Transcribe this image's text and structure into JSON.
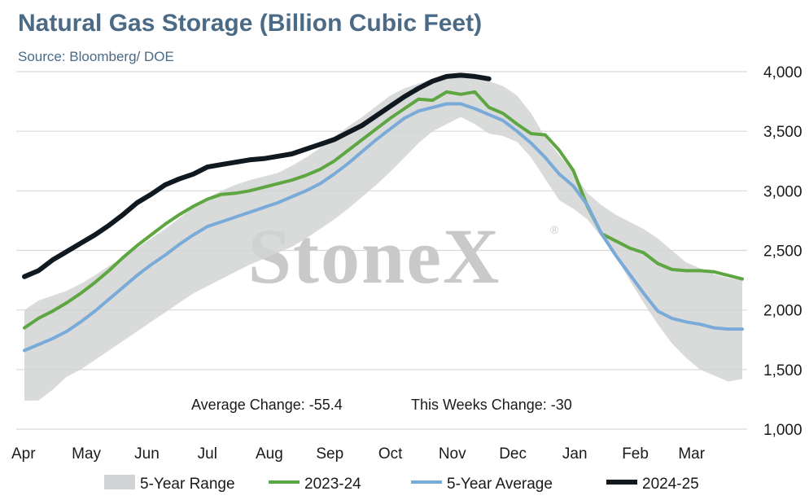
{
  "title": "Natural Gas Storage (Billion Cubic Feet)",
  "subtitle": "Source: Bloomberg/ DOE",
  "watermark": "StoneX",
  "watermark_mark": "®",
  "annotations": {
    "average_change": "Average Change: -55.4",
    "this_weeks_change": "This Weeks Change: -30"
  },
  "colors": {
    "range": "#d2d3d4",
    "y2023": "#5ea641",
    "avg": "#7aabd8",
    "y2024": "#101820",
    "text": "#1a1a1a",
    "title": "#4a6a86"
  },
  "chart_data": {
    "type": "line",
    "title": "Natural Gas Storage (Billion Cubic Feet)",
    "ylim": [
      1000,
      4000
    ],
    "y_ticks": [
      1000,
      1500,
      2000,
      2500,
      3000,
      3500,
      4000
    ],
    "y_tick_labels": [
      "1,000",
      "1,500",
      "2,000",
      "2,500",
      "3,000",
      "3,500",
      "4,000"
    ],
    "x_unit": "week (0 = first week of April)",
    "xlim": [
      0,
      51
    ],
    "x_ticks": [
      0,
      4.4,
      8.7,
      13,
      17.4,
      21.7,
      26,
      30.4,
      34.7,
      39.1,
      43.4,
      47.4
    ],
    "x_tick_labels": [
      "Apr",
      "May",
      "Jun",
      "Jul",
      "Aug",
      "Sep",
      "Oct",
      "Nov",
      "Dec",
      "Jan",
      "Feb",
      "Mar"
    ],
    "y_axis_position": "right",
    "grid": "horizontal",
    "legend_position": "bottom",
    "range_band": {
      "name": "5-Year Range",
      "x": [
        0,
        1,
        2,
        3,
        4,
        5,
        6,
        7,
        8,
        9,
        10,
        11,
        12,
        13,
        14,
        15,
        16,
        17,
        18,
        19,
        20,
        21,
        22,
        23,
        24,
        25,
        26,
        27,
        28,
        29,
        30,
        31,
        32,
        33,
        34,
        35,
        36,
        37,
        38,
        39,
        40,
        41,
        42,
        43,
        44,
        45,
        46,
        47,
        48,
        49,
        50,
        51
      ],
      "low": [
        1240,
        1240,
        1330,
        1440,
        1500,
        1580,
        1660,
        1740,
        1820,
        1900,
        1980,
        2060,
        2140,
        2200,
        2260,
        2320,
        2380,
        2430,
        2480,
        2530,
        2600,
        2680,
        2760,
        2850,
        2950,
        3050,
        3160,
        3280,
        3400,
        3500,
        3560,
        3620,
        3560,
        3480,
        3460,
        3410,
        3280,
        3100,
        2920,
        2850,
        2760,
        2610,
        2450,
        2250,
        2060,
        1880,
        1720,
        1600,
        1500,
        1450,
        1400,
        1420
      ],
      "high": [
        2000,
        2080,
        2120,
        2160,
        2220,
        2290,
        2370,
        2440,
        2520,
        2600,
        2680,
        2770,
        2860,
        2940,
        3000,
        3050,
        3090,
        3120,
        3150,
        3210,
        3280,
        3360,
        3450,
        3540,
        3620,
        3710,
        3800,
        3860,
        3900,
        3940,
        3960,
        3980,
        3960,
        3920,
        3880,
        3800,
        3650,
        3450,
        3300,
        3150,
        2980,
        2880,
        2800,
        2740,
        2680,
        2600,
        2500,
        2400,
        2350,
        2300,
        2270,
        2250
      ]
    },
    "series": [
      {
        "name": "2023-24",
        "x": [
          0,
          1,
          2,
          3,
          4,
          5,
          6,
          7,
          8,
          9,
          10,
          11,
          12,
          13,
          14,
          15,
          16,
          17,
          18,
          19,
          20,
          21,
          22,
          23,
          24,
          25,
          26,
          27,
          28,
          29,
          30,
          31,
          32,
          33,
          34,
          35,
          36,
          37,
          38,
          39,
          40,
          41,
          42,
          43,
          44,
          45,
          46,
          47,
          48,
          49,
          50,
          51
        ],
        "values": [
          1850,
          1930,
          1990,
          2060,
          2140,
          2230,
          2330,
          2440,
          2540,
          2630,
          2720,
          2800,
          2870,
          2930,
          2970,
          2980,
          3000,
          3030,
          3060,
          3090,
          3130,
          3180,
          3250,
          3340,
          3430,
          3520,
          3610,
          3690,
          3770,
          3760,
          3830,
          3810,
          3830,
          3700,
          3650,
          3560,
          3480,
          3470,
          3340,
          3170,
          2870,
          2640,
          2580,
          2520,
          2480,
          2390,
          2340,
          2330,
          2330,
          2320,
          2290,
          2260
        ]
      },
      {
        "name": "5-Year Average",
        "x": [
          0,
          1,
          2,
          3,
          4,
          5,
          6,
          7,
          8,
          9,
          10,
          11,
          12,
          13,
          14,
          15,
          16,
          17,
          18,
          19,
          20,
          21,
          22,
          23,
          24,
          25,
          26,
          27,
          28,
          29,
          30,
          31,
          32,
          33,
          34,
          35,
          36,
          37,
          38,
          39,
          40,
          41,
          42,
          43,
          44,
          45,
          46,
          47,
          48,
          49,
          50,
          51
        ],
        "values": [
          1660,
          1710,
          1760,
          1820,
          1900,
          1990,
          2090,
          2190,
          2290,
          2380,
          2460,
          2550,
          2630,
          2700,
          2740,
          2780,
          2820,
          2860,
          2900,
          2950,
          3000,
          3060,
          3140,
          3230,
          3330,
          3430,
          3520,
          3610,
          3670,
          3700,
          3730,
          3730,
          3690,
          3640,
          3590,
          3500,
          3400,
          3280,
          3140,
          3040,
          2880,
          2640,
          2460,
          2300,
          2140,
          1990,
          1930,
          1900,
          1880,
          1850,
          1840,
          1840
        ]
      },
      {
        "name": "2024-25",
        "x": [
          0,
          1,
          2,
          3,
          4,
          5,
          6,
          7,
          8,
          9,
          10,
          11,
          12,
          13,
          14,
          15,
          16,
          17,
          18,
          19,
          20,
          21,
          22,
          23,
          24,
          25,
          26,
          27,
          28,
          29,
          30,
          31,
          32,
          33
        ],
        "values": [
          2280,
          2330,
          2420,
          2490,
          2560,
          2630,
          2710,
          2800,
          2900,
          2970,
          3050,
          3100,
          3140,
          3200,
          3220,
          3240,
          3260,
          3270,
          3290,
          3310,
          3350,
          3390,
          3430,
          3490,
          3550,
          3630,
          3710,
          3790,
          3860,
          3920,
          3960,
          3970,
          3960,
          3940
        ]
      }
    ]
  },
  "legend": [
    {
      "label": "5-Year Range",
      "kind": "range"
    },
    {
      "label": "2023-24",
      "kind": "y2023"
    },
    {
      "label": "5-Year Average",
      "kind": "avg"
    },
    {
      "label": "2024-25",
      "kind": "y2024"
    }
  ]
}
